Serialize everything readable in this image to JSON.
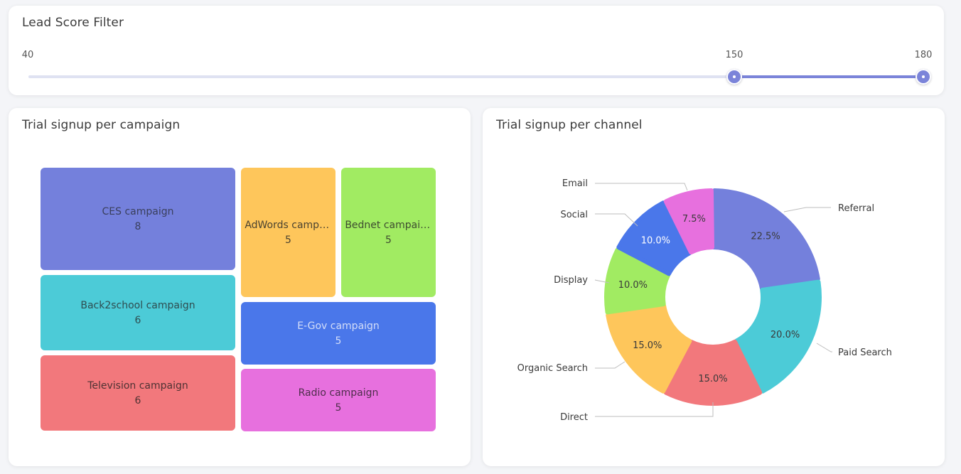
{
  "lead_score_filter": {
    "title": "Lead Score Filter",
    "min": 40,
    "max": 180,
    "range_low": 150,
    "range_high": 180,
    "min_label": "40",
    "low_label": "150",
    "max_label": "180"
  },
  "campaign_panel": {
    "title": "Trial signup per campaign",
    "tiles": [
      {
        "label": "CES campaign",
        "value": "8",
        "color": "#7480dc",
        "text_color": "#3a3f5c"
      },
      {
        "label": "AdWords campaign",
        "value": "5",
        "color": "#fec65b",
        "text_color": "#4a4230"
      },
      {
        "label": "Bednet campaign",
        "value": "5",
        "color": "#a1eb62",
        "text_color": "#3e4c30"
      },
      {
        "label": "Back2school campaign",
        "value": "6",
        "color": "#4ccbd7",
        "text_color": "#2f4d50"
      },
      {
        "label": "E-Gov campaign",
        "value": "5",
        "color": "#4a77ea",
        "text_color": "#d4def8"
      },
      {
        "label": "Television campaign",
        "value": "6",
        "color": "#f2787c",
        "text_color": "#4e3233"
      },
      {
        "label": "Radio campaign",
        "value": "5",
        "color": "#e770de",
        "text_color": "#4f2e4c"
      }
    ]
  },
  "channel_panel": {
    "title": "Trial signup per channel",
    "chart_data": {
      "type": "pie",
      "slices": [
        {
          "name": "Referral",
          "value": 22.5,
          "label": "22.5%",
          "color": "#7480dc"
        },
        {
          "name": "Paid Search",
          "value": 20.0,
          "label": "20.0%",
          "color": "#4ccbd7"
        },
        {
          "name": "Direct",
          "value": 15.0,
          "label": "15.0%",
          "color": "#f2787c"
        },
        {
          "name": "Organic Search",
          "value": 15.0,
          "label": "15.0%",
          "color": "#fec65b"
        },
        {
          "name": "Display",
          "value": 10.0,
          "label": "10.0%",
          "color": "#a1eb62"
        },
        {
          "name": "Social",
          "value": 10.0,
          "label": "10.0%",
          "color": "#4a77ea"
        },
        {
          "name": "Email",
          "value": 7.5,
          "label": "7.5%",
          "color": "#e770de"
        }
      ],
      "legend": "leader-lines"
    }
  }
}
